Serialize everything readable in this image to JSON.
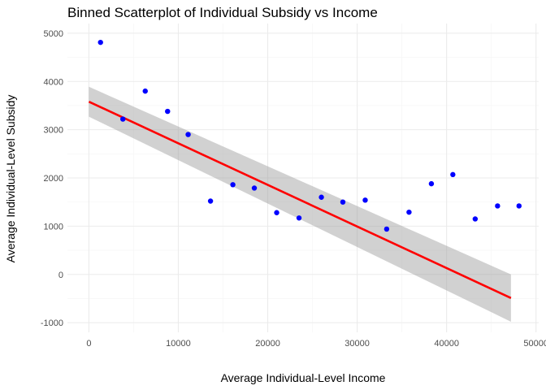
{
  "chart_data": {
    "type": "scatter",
    "title": "Binned Scatterplot of Individual Subsidy vs Income",
    "xlabel": "Average Individual-Level Income",
    "ylabel": "Average Individual-Level Subsidy",
    "xlim": [
      -2400,
      50300
    ],
    "ylim": [
      -1200,
      5200
    ],
    "x_ticks": [
      0,
      10000,
      20000,
      30000,
      40000,
      50000
    ],
    "x_tick_labels": [
      "0",
      "10000",
      "20000",
      "30000",
      "40000",
      "50000"
    ],
    "y_ticks": [
      -1000,
      0,
      1000,
      2000,
      3000,
      4000,
      5000
    ],
    "y_tick_labels": [
      "-1000",
      "0",
      "1000",
      "2000",
      "3000",
      "4000",
      "5000"
    ],
    "grid": true,
    "points": {
      "x": [
        1300,
        3800,
        6300,
        8800,
        11100,
        13600,
        16100,
        18500,
        21000,
        23500,
        26000,
        28400,
        30900,
        33300,
        35800,
        38300,
        40700,
        43200,
        45700,
        48100
      ],
      "y": [
        4810,
        3220,
        3800,
        3380,
        2900,
        1520,
        1860,
        1790,
        1280,
        1170,
        1600,
        1500,
        1540,
        940,
        1290,
        1880,
        2070,
        1150,
        1420,
        1420
      ]
    },
    "trend_line": {
      "x": [
        0,
        47200
      ],
      "y": [
        3580,
        -490
      ]
    },
    "confidence_band": {
      "x": [
        0,
        47200
      ],
      "upper": [
        3890,
        0
      ],
      "lower": [
        3270,
        -980
      ]
    },
    "colors": {
      "points": "#0000ff",
      "trend_line": "#ff0000",
      "band": "#999999",
      "grid_major": "#ebebeb",
      "grid_minor": "#f5f5f5"
    }
  }
}
